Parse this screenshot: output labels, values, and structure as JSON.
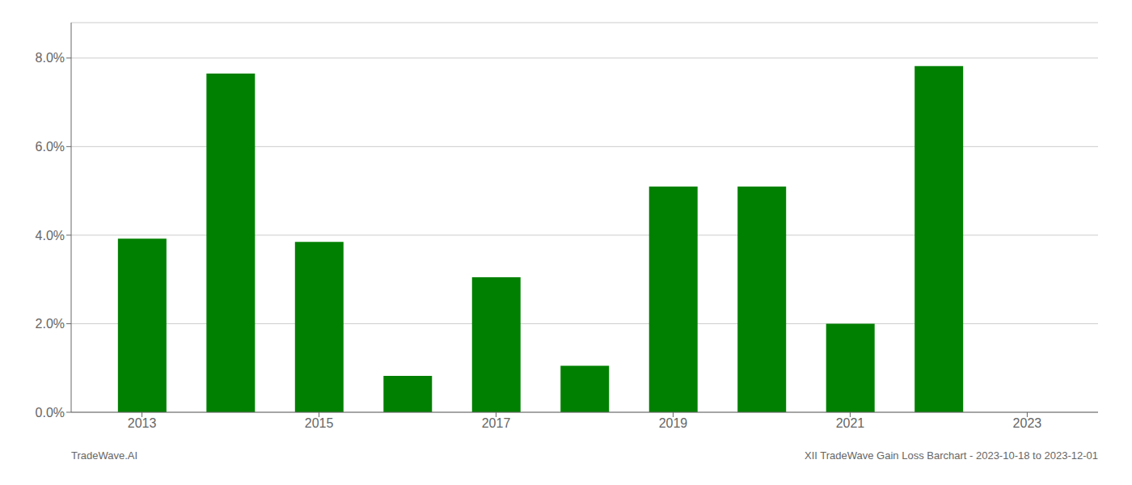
{
  "chart_data": {
    "type": "bar",
    "x": [
      2013,
      2014,
      2015,
      2016,
      2017,
      2018,
      2019,
      2020,
      2021,
      2022
    ],
    "values": [
      0.0392,
      0.0765,
      0.0385,
      0.0082,
      0.0305,
      0.0105,
      0.051,
      0.051,
      0.02,
      0.0782
    ],
    "color": "#008000",
    "xlim": [
      2012.2,
      2023.8
    ],
    "xticks": [
      2013,
      2015,
      2017,
      2019,
      2021,
      2023
    ],
    "ylim": [
      0,
      0.088
    ],
    "yticks": [
      {
        "value": 0.0,
        "label": "0.0%"
      },
      {
        "value": 0.02,
        "label": "2.0%"
      },
      {
        "value": 0.04,
        "label": "4.0%"
      },
      {
        "value": 0.06,
        "label": "6.0%"
      },
      {
        "value": 0.08,
        "label": "8.0%"
      }
    ],
    "grid": "y",
    "annotations": [
      "TradeWave.AI",
      "XII TradeWave Gain Loss Barchart - 2023-10-18 to 2023-12-01"
    ]
  }
}
